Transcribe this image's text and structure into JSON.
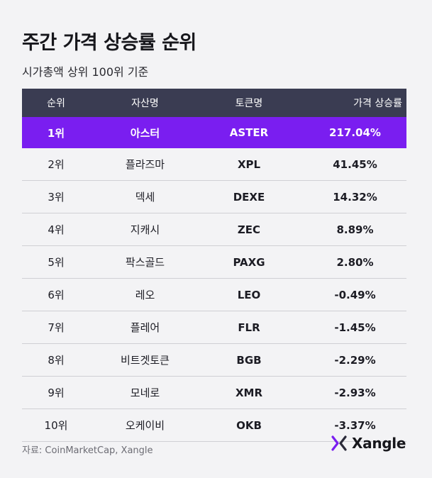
{
  "title": "주간 가격 상승률 순위",
  "subtitle": "시가총액 상위 100위 기준",
  "table": {
    "headers": [
      "순위",
      "자산명",
      "토큰명",
      "가격 상승률"
    ],
    "rows": [
      {
        "rank": "1위",
        "name": "아스터",
        "token": "ASTER",
        "change": "217.04%"
      },
      {
        "rank": "2위",
        "name": "플라즈마",
        "token": "XPL",
        "change": "41.45%"
      },
      {
        "rank": "3위",
        "name": "덱세",
        "token": "DEXE",
        "change": "14.32%"
      },
      {
        "rank": "4위",
        "name": "지캐시",
        "token": "ZEC",
        "change": "8.89%"
      },
      {
        "rank": "5위",
        "name": "팍스골드",
        "token": "PAXG",
        "change": "2.80%"
      },
      {
        "rank": "6위",
        "name": "레오",
        "token": "LEO",
        "change": "-0.49%"
      },
      {
        "rank": "7위",
        "name": "플레어",
        "token": "FLR",
        "change": "-1.45%"
      },
      {
        "rank": "8위",
        "name": "비트겟토큰",
        "token": "BGB",
        "change": "-2.29%"
      },
      {
        "rank": "9위",
        "name": "모네로",
        "token": "XMR",
        "change": "-2.93%"
      },
      {
        "rank": "10위",
        "name": "오케이비",
        "token": "OKB",
        "change": "-3.37%"
      }
    ]
  },
  "source": "자료: CoinMarketCap, Xangle",
  "logo": {
    "text": "Xangle",
    "icon": "xangle-x-icon"
  },
  "colors": {
    "header_bg": "#3a3c52",
    "highlight_bg": "#7a1ef0",
    "logo_accent": "#7a1ef0"
  }
}
